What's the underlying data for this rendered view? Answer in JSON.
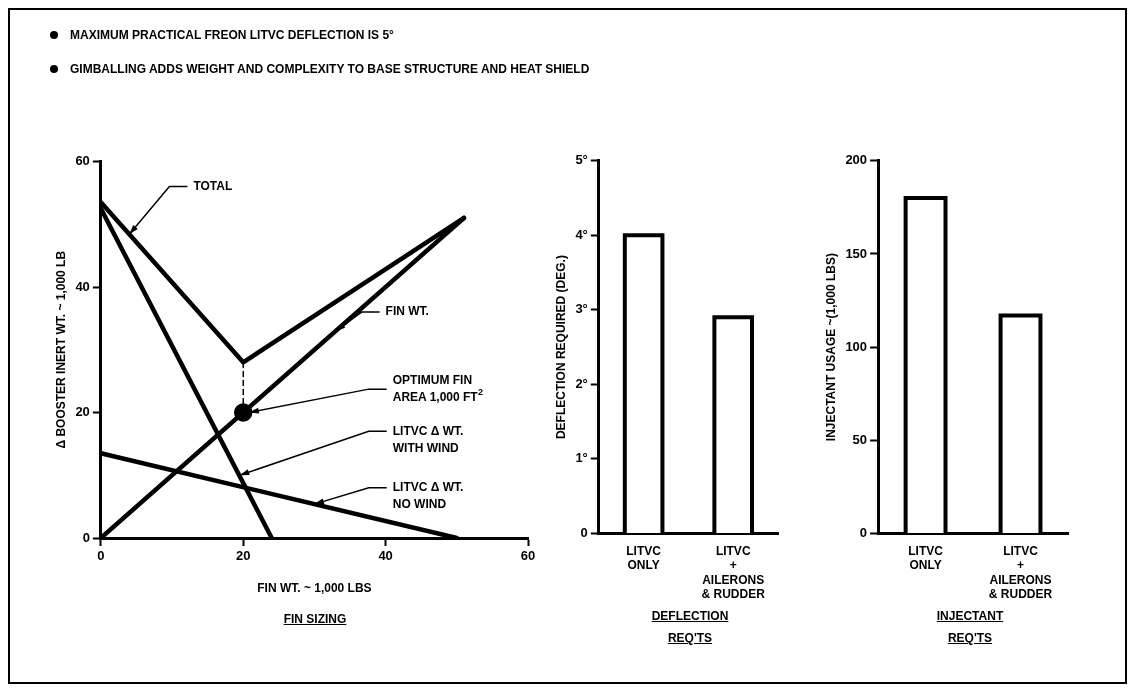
{
  "chart_data": [
    {
      "type": "line",
      "title": "FIN SIZING",
      "xlabel": "FIN WT. ~ 1,000 LBS",
      "ylabel": "Δ BOOSTER INERT WT. ~ 1,000 LB",
      "xlim": [
        0,
        60
      ],
      "xticks": [
        0,
        20,
        40,
        60
      ],
      "ylim": [
        0,
        60
      ],
      "yticks": [
        0,
        20,
        40,
        60
      ],
      "grid": false,
      "legend": false,
      "marker": "none",
      "line_style": "solid",
      "annotations": [
        "MAXIMUM PRACTICAL FREON LITVC DEFLECTION IS 5°",
        "GIMBALLING ADDS WEIGHT AND COMPLEXITY TO BASE STRUCTURE AND HEAT SHIELD",
        {
          "text": "OPTIMUM FIN\nAREA 1,000 FT$^{2}$",
          "x": 20,
          "y": 20
        }
      ],
      "series": [
        {
          "name": "TOTAL",
          "color": "#000000",
          "x": [
            0,
            20,
            51
          ],
          "values": [
            53.5,
            28,
            51
          ]
        },
        {
          "name": "FIN WT.",
          "color": "#000000",
          "x": [
            0,
            51
          ],
          "values": [
            0,
            51
          ]
        },
        {
          "name": "LITVC Δ WT.\nWITH WIND",
          "color": "#000000",
          "x": [
            0,
            24
          ],
          "values": [
            52.5,
            0
          ]
        },
        {
          "name": "LITVC Δ WT.\nNO WIND",
          "color": "#000000",
          "x": [
            0,
            50
          ],
          "values": [
            13.5,
            0
          ]
        },
        {
          "type": "line",
          "line_style": "dashed",
          "color": "#000000",
          "x": [
            20,
            20
          ],
          "values": [
            20,
            28
          ]
        },
        {
          "type": "scatter",
          "marker": "circle",
          "color": "#000000",
          "x": [
            20
          ],
          "values": [
            20
          ]
        }
      ]
    },
    {
      "type": "bar",
      "title": "DEFLECTION\nREQ'TS",
      "ylabel": "DEFLECTION REQUIRED (DEG.)",
      "categories": [
        "LITVC\nONLY",
        "LITVC\n+\nAILERONS\n& RUDDER"
      ],
      "values": [
        4,
        2.9
      ],
      "color": "#ffffff",
      "ylim": [
        0,
        5
      ],
      "yticks": [
        0,
        {
          "value": 1,
          "label": "1°"
        },
        {
          "value": 2,
          "label": "2°"
        },
        {
          "value": 3,
          "label": "3°"
        },
        {
          "value": 4,
          "label": "4°"
        },
        {
          "value": 5,
          "label": "5°"
        }
      ],
      "grid": false,
      "legend": false
    },
    {
      "type": "bar",
      "title": "INJECTANT\nREQ'TS",
      "ylabel": "INJECTANT USAGE ~(1,000 LBS)",
      "categories": [
        "LITVC\nONLY",
        "LITVC\n+\nAILERONS\n& RUDDER"
      ],
      "values": [
        180,
        117
      ],
      "color": "#ffffff",
      "ylim": [
        0,
        200
      ],
      "yticks": [
        0,
        50,
        100,
        150,
        200
      ],
      "grid": false,
      "legend": false
    }
  ]
}
